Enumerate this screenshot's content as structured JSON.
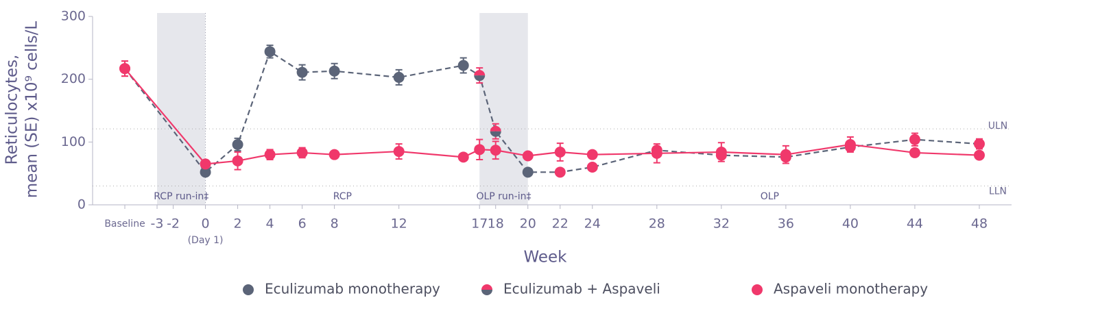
{
  "chart_data": {
    "type": "line",
    "y_label": [
      "Reticulocytes,",
      "mean (SE) x10⁹ cells/L"
    ],
    "x_label": "Week",
    "xlim": [
      -7,
      50
    ],
    "ylim": [
      0,
      300
    ],
    "yticks": [
      0,
      100,
      200,
      300
    ],
    "xticks": [
      {
        "value": -5,
        "label": "Baseline"
      },
      -3,
      -2,
      {
        "value": 0,
        "label": "0",
        "sublabel": "(Day 1)"
      },
      2,
      4,
      6,
      8,
      12,
      17,
      18,
      20,
      22,
      24,
      28,
      32,
      36,
      40,
      44,
      48
    ],
    "x": [
      -5,
      0,
      2,
      4,
      6,
      8,
      12,
      16,
      17,
      18,
      20,
      22,
      24,
      28,
      32,
      36,
      40,
      44,
      48
    ],
    "periods": [
      {
        "name": "RCP run-in‡",
        "start": -3,
        "end": 0,
        "shaded": true
      },
      {
        "name": "RCP",
        "start": 0,
        "end": 17,
        "shaded": false
      },
      {
        "name": "OLP run-in‡",
        "start": 17,
        "end": 20,
        "shaded": true
      },
      {
        "name": "OLP",
        "start": 20,
        "end": 50,
        "shaded": false
      }
    ],
    "ref_lines": [
      {
        "label": "ULN",
        "value": 121
      },
      {
        "label": "LLN",
        "value": 30
      }
    ],
    "legend": [
      {
        "label": "Eculizumab monotherapy",
        "marker": "#5b6478"
      },
      {
        "label": "Eculizumab + Aspaveli",
        "marker": "half"
      },
      {
        "label": "Aspaveli monotherapy",
        "marker": "#f0386b"
      }
    ],
    "series": [
      {
        "color": "#5b6478",
        "dashed": true,
        "values": [
          217,
          52,
          96,
          244,
          211,
          213,
          203,
          222,
          206,
          117,
          52,
          52,
          60,
          87,
          79,
          76,
          92,
          104,
          97
        ],
        "errors": [
          12,
          5,
          10,
          10,
          12,
          12,
          12,
          12,
          12,
          12,
          4,
          4,
          4,
          5,
          5,
          5,
          6,
          10,
          8
        ],
        "markers": [
          2,
          0,
          0,
          0,
          0,
          0,
          0,
          0,
          1,
          1,
          0,
          2,
          2,
          2,
          2,
          2,
          2,
          2,
          2
        ]
      },
      {
        "color": "#f0386b",
        "dashed": false,
        "values": [
          217,
          65,
          70,
          80,
          83,
          80,
          85,
          76,
          88,
          87,
          78,
          84,
          80,
          82,
          84,
          80,
          96,
          83,
          79
        ],
        "errors": [
          12,
          6,
          14,
          8,
          8,
          5,
          12,
          5,
          16,
          14,
          5,
          14,
          5,
          15,
          15,
          14,
          12,
          6,
          5
        ],
        "markers": [
          2,
          2,
          2,
          2,
          2,
          2,
          2,
          2,
          2,
          2,
          2,
          2,
          2,
          2,
          2,
          2,
          2,
          2,
          2
        ]
      }
    ]
  }
}
